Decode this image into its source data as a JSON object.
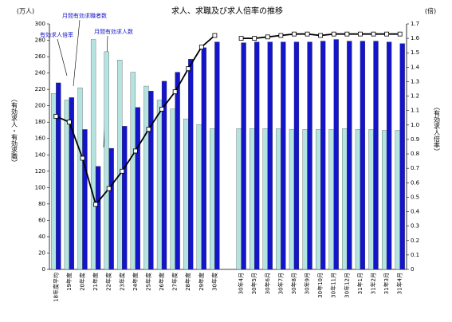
{
  "chart_data": {
    "type": "bar",
    "title": "求人、求職及び求人倍率の推移",
    "y_label_unit": "(万人)",
    "y2_label_unit": "(倍)",
    "y_label": "（有効求人・有効求職）",
    "y2_label": "（有効求人倍率）",
    "categories": [
      "18年度平均",
      "19年度",
      "20年度",
      "21年度",
      "22年度",
      "23年度",
      "24年度",
      "25年度",
      "26年度",
      "27年度",
      "28年度",
      "29年度",
      "30年度",
      null,
      "30年4月",
      "30年5月",
      "30年6月",
      "30年7月",
      "30年8月",
      "30年9月",
      "30年10月",
      "30年11月",
      "30年12月",
      "31年1月",
      "31年2月",
      "31年3月",
      "31年4月"
    ],
    "series": [
      {
        "name": "月間有効求職者数",
        "color": "#b4e4e0",
        "values": [
          215,
          207,
          222,
          281,
          266,
          256,
          241,
          224,
          207,
          196,
          184,
          177,
          172,
          null,
          172,
          172,
          172,
          172,
          171,
          171,
          171,
          171,
          172,
          171,
          171,
          170,
          170
        ]
      },
      {
        "name": "月間有効求人数",
        "color": "#1414c8",
        "values": [
          228,
          210,
          171,
          126,
          148,
          175,
          198,
          218,
          230,
          241,
          257,
          271,
          278,
          null,
          277,
          278,
          278,
          278,
          278,
          278,
          279,
          281,
          279,
          279,
          279,
          278,
          276
        ]
      },
      {
        "name": "有効求人倍率",
        "type": "line",
        "axis": "y2",
        "color": "#000000",
        "values": [
          1.06,
          1.02,
          0.77,
          0.45,
          0.56,
          0.68,
          0.82,
          0.97,
          1.11,
          1.23,
          1.39,
          1.54,
          1.62,
          null,
          1.6,
          1.6,
          1.61,
          1.62,
          1.63,
          1.63,
          1.62,
          1.63,
          1.63,
          1.63,
          1.63,
          1.63,
          1.63
        ]
      }
    ],
    "ylim": [
      0,
      300
    ],
    "yticks": [
      0,
      20,
      40,
      60,
      80,
      100,
      120,
      140,
      160,
      180,
      200,
      220,
      240,
      260,
      280,
      300
    ],
    "y2lim": [
      0,
      1.7
    ],
    "y2ticks": [
      0,
      0.1,
      0.2,
      0.3,
      0.4,
      0.5,
      0.6,
      0.7,
      0.8,
      0.9,
      {
        "value": 1,
        "label": "1.0"
      },
      1.1,
      1.2,
      1.3,
      1.4,
      1.5,
      1.6,
      1.7
    ],
    "grid": false
  }
}
